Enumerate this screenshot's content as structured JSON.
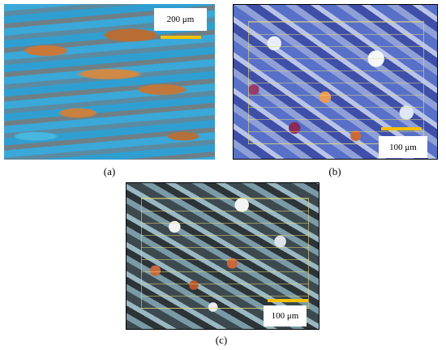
{
  "panels": [
    {
      "label": "(a)",
      "scale_bar": "200 μm"
    },
    {
      "label": "(b)",
      "scale_bar": "100 μm"
    },
    {
      "label": "(c)",
      "scale_bar": "100 μm"
    }
  ]
}
